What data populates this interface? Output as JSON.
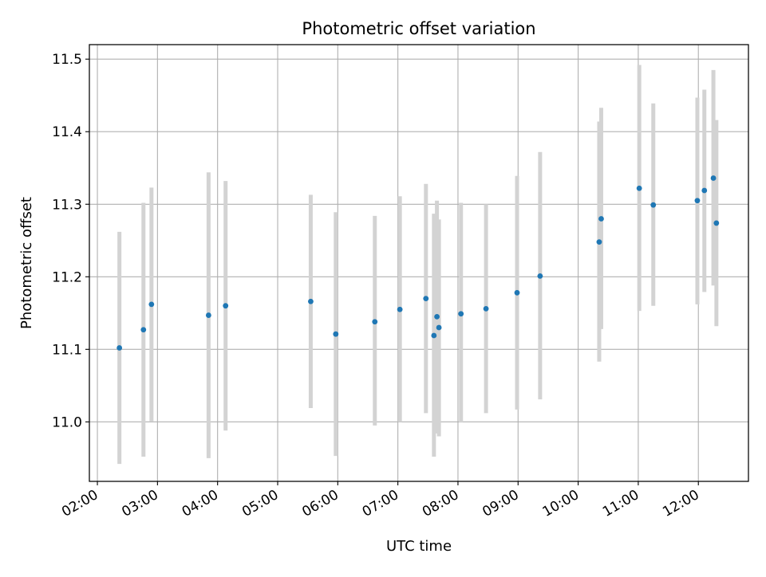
{
  "chart_data": {
    "type": "scatter",
    "title": "Photometric offset variation",
    "xlabel": "UTC time",
    "ylabel": "Photometric offset",
    "x_tick_labels": [
      "02:00",
      "03:00",
      "04:00",
      "05:00",
      "06:00",
      "07:00",
      "08:00",
      "09:00",
      "10:00",
      "11:00",
      "12:00"
    ],
    "y_tick_labels": [
      "11.0",
      "11.1",
      "11.2",
      "11.3",
      "11.4",
      "11.5"
    ],
    "xlim": [
      "01:52",
      "12:50"
    ],
    "ylim": [
      10.918,
      11.52
    ],
    "grid": true,
    "colors": {
      "point": "#1f77b4",
      "errorbar": "#d3d3d3",
      "grid": "#b0b0b0"
    },
    "points": [
      {
        "x": "02:22",
        "y": 11.102,
        "err_low": 10.942,
        "err_high": 11.262
      },
      {
        "x": "02:46",
        "y": 11.127,
        "err_low": 10.952,
        "err_high": 11.302
      },
      {
        "x": "02:54",
        "y": 11.162,
        "err_low": 11.001,
        "err_high": 11.323
      },
      {
        "x": "03:51",
        "y": 11.147,
        "err_low": 10.95,
        "err_high": 11.344
      },
      {
        "x": "04:08",
        "y": 11.16,
        "err_low": 10.988,
        "err_high": 11.332
      },
      {
        "x": "05:33",
        "y": 11.166,
        "err_low": 11.019,
        "err_high": 11.313
      },
      {
        "x": "05:58",
        "y": 11.121,
        "err_low": 10.953,
        "err_high": 11.289
      },
      {
        "x": "06:37",
        "y": 11.138,
        "err_low": 10.995,
        "err_high": 11.284
      },
      {
        "x": "07:02",
        "y": 11.155,
        "err_low": 11.0,
        "err_high": 11.311
      },
      {
        "x": "07:28",
        "y": 11.17,
        "err_low": 11.012,
        "err_high": 11.328
      },
      {
        "x": "07:36",
        "y": 11.119,
        "err_low": 10.952,
        "err_high": 11.287
      },
      {
        "x": "07:39",
        "y": 11.145,
        "err_low": 10.984,
        "err_high": 11.305
      },
      {
        "x": "07:41",
        "y": 11.13,
        "err_low": 10.98,
        "err_high": 11.279
      },
      {
        "x": "08:03",
        "y": 11.149,
        "err_low": 10.999,
        "err_high": 11.302
      },
      {
        "x": "08:28",
        "y": 11.156,
        "err_low": 11.012,
        "err_high": 11.3
      },
      {
        "x": "08:59",
        "y": 11.178,
        "err_low": 11.017,
        "err_high": 11.339
      },
      {
        "x": "09:22",
        "y": 11.201,
        "err_low": 11.031,
        "err_high": 11.372
      },
      {
        "x": "10:21",
        "y": 11.248,
        "err_low": 11.083,
        "err_high": 11.414
      },
      {
        "x": "10:23",
        "y": 11.28,
        "err_low": 11.128,
        "err_high": 11.433
      },
      {
        "x": "11:01",
        "y": 11.322,
        "err_low": 11.153,
        "err_high": 11.492
      },
      {
        "x": "11:15",
        "y": 11.299,
        "err_low": 11.16,
        "err_high": 11.439
      },
      {
        "x": "11:59",
        "y": 11.305,
        "err_low": 11.162,
        "err_high": 11.447
      },
      {
        "x": "12:06",
        "y": 11.319,
        "err_low": 11.179,
        "err_high": 11.458
      },
      {
        "x": "12:15",
        "y": 11.336,
        "err_low": 11.188,
        "err_high": 11.485
      },
      {
        "x": "12:18",
        "y": 11.274,
        "err_low": 11.132,
        "err_high": 11.416
      }
    ]
  }
}
